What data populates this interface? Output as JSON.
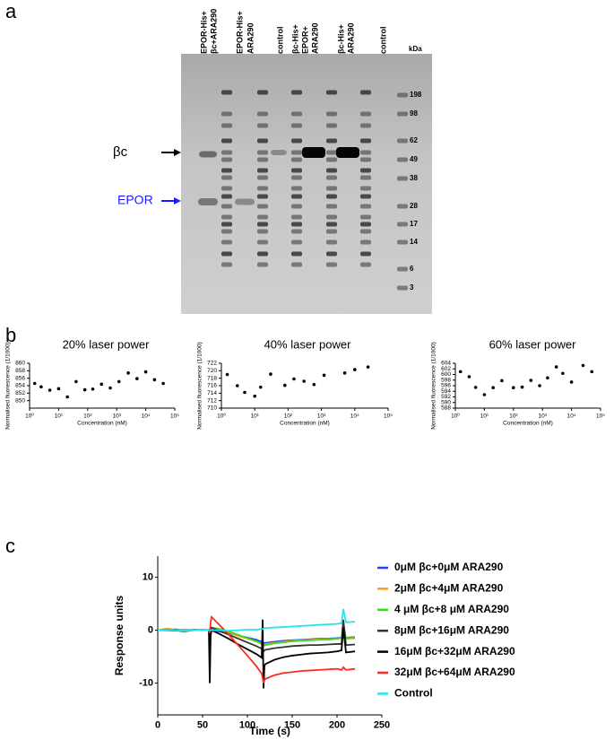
{
  "panel_labels": [
    "a",
    "b",
    "c"
  ],
  "gel": {
    "lanes": [
      [
        "EPOR-His+",
        "βc+ARA290"
      ],
      [
        "EPOR-His+",
        "ARA290"
      ],
      [
        "control"
      ],
      [
        "βc-His+",
        "EPOR+",
        "ARA290"
      ],
      [
        "βc-His+",
        "ARA290"
      ],
      [
        "control"
      ]
    ],
    "kda_title": "kDa",
    "markers": [
      198,
      98,
      62,
      49,
      38,
      28,
      17,
      14,
      6,
      3
    ],
    "band_labels": [
      "βc",
      "EPOR"
    ]
  },
  "chart_data": [
    {
      "type": "scatter",
      "title": "20% laser power",
      "x_label": "Concentration (nM)",
      "y_label": "Normalised fluorescence (1/1000)",
      "xscale": "log",
      "xlim": [
        1,
        100000
      ],
      "xticks": [
        {
          "value": 1,
          "label": "10⁰"
        },
        {
          "value": 10,
          "label": "10¹"
        },
        {
          "value": 100,
          "label": "10²"
        },
        {
          "value": 1000,
          "label": "10³"
        },
        {
          "value": 10000,
          "label": "10⁴"
        },
        {
          "value": 100000,
          "label": "10⁵"
        }
      ],
      "ylim": [
        848,
        860
      ],
      "yticks": [
        850,
        852,
        854,
        856,
        858,
        860
      ],
      "color": "#000000",
      "x": [
        1.5,
        2.5,
        5,
        10,
        20,
        40,
        80,
        150,
        300,
        600,
        1200,
        2500,
        5000,
        10000,
        20000,
        40000
      ],
      "values": [
        854.6,
        853.7,
        852.8,
        853.2,
        851.0,
        855.1,
        852.9,
        853.1,
        854.4,
        853.4,
        855.1,
        857.4,
        855.9,
        857.7,
        855.6,
        854.6
      ]
    },
    {
      "type": "scatter",
      "title": "40% laser power",
      "x_label": "Concentration (nM)",
      "y_label": "Normalised fluorescence (1/1000)",
      "xscale": "log",
      "xlim": [
        1,
        100000
      ],
      "xticks": [
        {
          "value": 1,
          "label": "10⁰"
        },
        {
          "value": 10,
          "label": "10¹"
        },
        {
          "value": 100,
          "label": "10²"
        },
        {
          "value": 1000,
          "label": "10³"
        },
        {
          "value": 10000,
          "label": "10⁴"
        },
        {
          "value": 100000,
          "label": "10⁵"
        }
      ],
      "ylim": [
        710,
        722
      ],
      "yticks": [
        710,
        712,
        714,
        716,
        718,
        720,
        722
      ],
      "color": "#000000",
      "x": [
        1.5,
        3,
        5,
        10,
        15,
        30,
        80,
        150,
        300,
        600,
        1200,
        5000,
        10000,
        25000
      ],
      "values": [
        719.0,
        716.0,
        714.2,
        713.2,
        715.6,
        719.1,
        716.1,
        717.8,
        717.2,
        716.3,
        718.8,
        719.4,
        720.3,
        721.0
      ]
    },
    {
      "type": "scatter",
      "title": "60% laser power",
      "x_label": "Concentration (nM)",
      "y_label": "Normalised fluorescence (1/1000)",
      "xscale": "log",
      "xlim": [
        1,
        100000
      ],
      "xticks": [
        {
          "value": 1,
          "label": "10⁰"
        },
        {
          "value": 10,
          "label": "10¹"
        },
        {
          "value": 100,
          "label": "10²"
        },
        {
          "value": 1000,
          "label": "10³"
        },
        {
          "value": 10000,
          "label": "10⁴"
        },
        {
          "value": 100000,
          "label": "10⁵"
        }
      ],
      "ylim": [
        588,
        604
      ],
      "yticks": [
        588,
        590,
        592,
        594,
        596,
        598,
        600,
        602,
        604
      ],
      "color": "#000000",
      "x": [
        1.5,
        3,
        5,
        10,
        20,
        40,
        100,
        200,
        400,
        800,
        1500,
        3000,
        5000,
        10000,
        25000,
        50000
      ],
      "values": [
        601.0,
        599.2,
        595.4,
        592.8,
        595.3,
        597.8,
        595.3,
        595.5,
        597.9,
        596.0,
        598.8,
        602.7,
        600.4,
        597.3,
        603.2,
        601.0
      ]
    },
    {
      "type": "line",
      "x_label": "Time (s)",
      "y_label": "Response units",
      "xlim": [
        0,
        250
      ],
      "xticks": [
        0,
        50,
        100,
        150,
        200,
        250
      ],
      "ylim": [
        -16,
        14
      ],
      "yticks": [
        -10,
        0,
        10
      ],
      "x": [
        0,
        10,
        20,
        30,
        40,
        50,
        57,
        58,
        59,
        60,
        70,
        80,
        90,
        100,
        110,
        116,
        117,
        118,
        119,
        120,
        130,
        140,
        150,
        160,
        170,
        180,
        190,
        200,
        205,
        207,
        210,
        220
      ],
      "series": [
        {
          "name": "0μM βc+0μM ARA290",
          "color": "#1f3fff",
          "values": [
            0,
            0.2,
            0,
            -0.3,
            0.1,
            0,
            0,
            0,
            0,
            0,
            -0.3,
            -0.6,
            -1,
            -1.4,
            -1.8,
            -2.2,
            -2.3,
            -2.4,
            -2.4,
            -2.4,
            -2.2,
            -2.0,
            -1.9,
            -1.8,
            -1.7,
            -1.6,
            -1.6,
            -1.5,
            -1.4,
            -1.4,
            -1.4,
            -1.3
          ]
        },
        {
          "name": "2μM βc+4μM ARA290",
          "color": "#ff9a1a",
          "values": [
            0,
            0.3,
            0.1,
            -0.2,
            0,
            0.1,
            0,
            0.1,
            0.2,
            0.3,
            0,
            -0.5,
            -1.1,
            -1.6,
            -2.1,
            -2.5,
            -2.6,
            -2.7,
            -2.7,
            -2.6,
            -2.4,
            -2.2,
            -2.0,
            -1.9,
            -1.8,
            -1.7,
            -1.7,
            -1.6,
            -1.5,
            0.5,
            -1.5,
            -1.4
          ]
        },
        {
          "name": "4 μM βc+8 μM ARA290",
          "color": "#33dd22",
          "values": [
            0,
            0,
            0.2,
            -0.2,
            0,
            0,
            0,
            0.2,
            0.3,
            0.5,
            0.2,
            -0.3,
            -0.9,
            -1.5,
            -2.1,
            -2.6,
            -2.8,
            -3,
            -2.9,
            -2.8,
            -2.5,
            -2.3,
            -2.1,
            -2,
            -1.9,
            -1.8,
            -1.8,
            -1.6,
            -1.5,
            1.5,
            -1.6,
            -1.5
          ]
        },
        {
          "name": "8μM βc+16μM ARA290",
          "color": "#333333",
          "values": [
            0,
            0,
            0,
            0,
            0,
            0,
            0,
            -1,
            0,
            0.5,
            -0.2,
            -0.9,
            -1.6,
            -2.3,
            -3,
            -3.5,
            -3.6,
            -4,
            -3.8,
            -3.7,
            -3.4,
            -3.2,
            -3,
            -2.9,
            -2.8,
            -2.8,
            -2.7,
            -2.6,
            -2.6,
            2,
            -2.8,
            -2.7
          ]
        },
        {
          "name": "16μM βc+32μM ARA290",
          "color": "#000000",
          "values": [
            0,
            0.1,
            0,
            0,
            0,
            0,
            0,
            -10,
            -1,
            0,
            -0.8,
            -1.7,
            -2.7,
            -3.6,
            -4.5,
            -5.2,
            2,
            -11,
            -6.8,
            -6.4,
            -5.6,
            -5.1,
            -4.8,
            -4.6,
            -4.4,
            -4.3,
            -4.2,
            -4,
            -3.8,
            0.5,
            -4.2,
            -4
          ]
        },
        {
          "name": "32μM βc+64μM ARA290",
          "color": "#ff2a1a",
          "values": [
            0,
            0,
            -0.1,
            0,
            0,
            0,
            0,
            -0.5,
            1.5,
            2.5,
            0.8,
            -1,
            -2.9,
            -4.8,
            -6.8,
            -8.2,
            -9,
            -10,
            -9.5,
            -9.2,
            -8.5,
            -8.1,
            -7.9,
            -7.7,
            -7.6,
            -7.5,
            -7.4,
            -7.3,
            -7.5,
            -7,
            -7.5,
            -7.3
          ]
        },
        {
          "name": "Control",
          "color": "#22e5ee",
          "values": [
            0,
            0.1,
            0,
            -0.1,
            0,
            0,
            0,
            0,
            0,
            0,
            0,
            -0.1,
            0,
            0.1,
            0.1,
            0.2,
            0.2,
            0.3,
            0.4,
            0.4,
            0.5,
            0.6,
            0.7,
            0.8,
            0.9,
            1,
            1.1,
            1.2,
            1.3,
            4,
            1.5,
            1.6
          ]
        }
      ]
    }
  ]
}
